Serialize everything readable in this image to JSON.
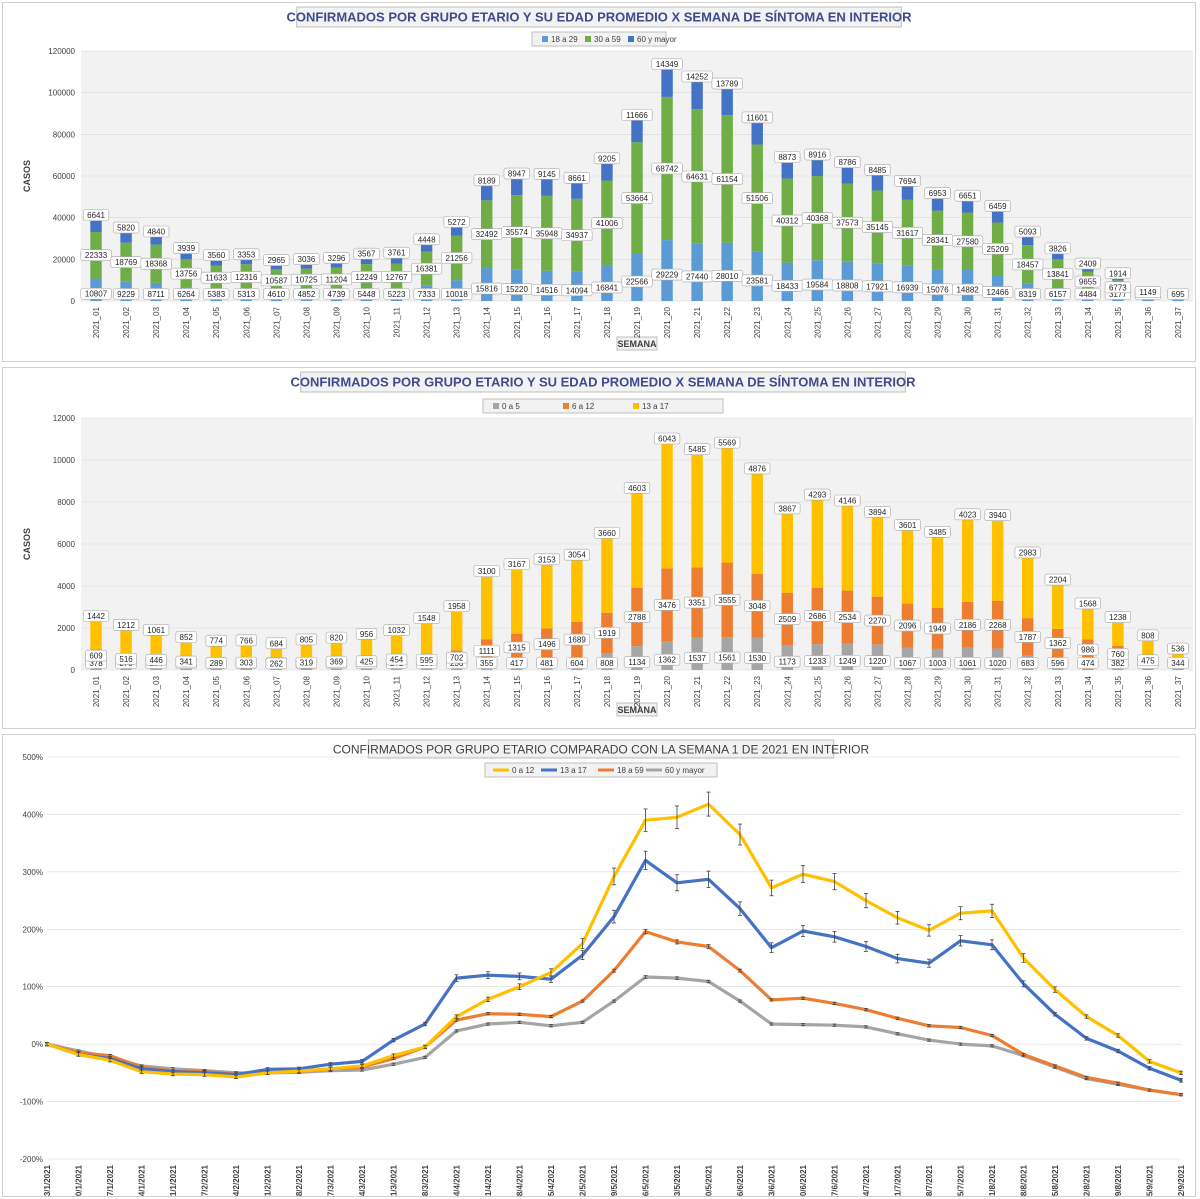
{
  "chart_data": [
    {
      "type": "bar",
      "stacked": true,
      "title": "CONFIRMADOS POR GRUPO ETARIO Y SU EDAD PROMEDIO X SEMANA DE SÍNTOMA EN INTERIOR",
      "xlabel": "SEMANA",
      "ylabel": "CASOS",
      "ylim": [
        0,
        120000
      ],
      "yticks": [
        0,
        20000,
        40000,
        60000,
        80000,
        100000,
        120000
      ],
      "legend_position": "top",
      "categories": [
        "2021_01",
        "2021_02",
        "2021_03",
        "2021_04",
        "2021_05",
        "2021_06",
        "2021_07",
        "2021_08",
        "2021_09",
        "2021_10",
        "2021_11",
        "2021_12",
        "2021_13",
        "2021_14",
        "2021_15",
        "2021_16",
        "2021_17",
        "2021_18",
        "2021_19",
        "2021_20",
        "2021_21",
        "2021_22",
        "2021_23",
        "2021_24",
        "2021_25",
        "2021_26",
        "2021_27",
        "2021_28",
        "2021_29",
        "2021_30",
        "2021_31",
        "2021_32",
        "2021_33",
        "2021_34",
        "2021_35",
        "2021_36",
        "2021_37"
      ],
      "series": [
        {
          "name": "18 a 29",
          "color": "#5b9bd5",
          "values": [
            10807,
            9229,
            8711,
            6264,
            5383,
            5313,
            4610,
            4852,
            4739,
            5448,
            5223,
            7333,
            10018,
            15816,
            15220,
            14516,
            14094,
            16841,
            22566,
            29229,
            27440,
            28010,
            23581,
            18433,
            19584,
            18808,
            17921,
            16939,
            15076,
            14882,
            12466,
            8319,
            6157,
            4484,
            3177,
            1627,
            695
          ]
        },
        {
          "name": "30 a 59",
          "color": "#70ad47",
          "values": [
            22333,
            18769,
            18368,
            13756,
            11633,
            12316,
            10587,
            10725,
            11204,
            12249,
            12767,
            16381,
            21256,
            32492,
            35574,
            35948,
            34937,
            41006,
            53664,
            68742,
            64631,
            61154,
            51506,
            40312,
            40368,
            37573,
            35145,
            31617,
            28341,
            27580,
            25209,
            18457,
            13841,
            9655,
            6773,
            null,
            null
          ]
        },
        {
          "name": "60 y mayor",
          "color": "#4472c4",
          "values": [
            6641,
            5820,
            4840,
            3939,
            3560,
            3353,
            2965,
            3036,
            3296,
            3567,
            3761,
            4448,
            5272,
            8189,
            8947,
            9145,
            8661,
            9205,
            11666,
            14349,
            14252,
            13789,
            11601,
            8873,
            8916,
            8786,
            8485,
            7694,
            6953,
            6651,
            6459,
            5093,
            3826,
            2409,
            1914,
            1149,
            null
          ]
        }
      ]
    },
    {
      "type": "bar",
      "stacked": true,
      "title": "CONFIRMADOS POR GRUPO ETARIO Y SU EDAD PROMEDIO X SEMANA DE SÍNTOMA EN INTERIOR",
      "xlabel": "SEMANA",
      "ylabel": "CASOS",
      "ylim": [
        0,
        12000
      ],
      "yticks": [
        0,
        2000,
        4000,
        6000,
        8000,
        10000,
        12000
      ],
      "legend_position": "top",
      "categories": [
        "2021_01",
        "2021_02",
        "2021_03",
        "2021_04",
        "2021_05",
        "2021_06",
        "2021_07",
        "2021_08",
        "2021_09",
        "2021_10",
        "2021_11",
        "2021_12",
        "2021_13",
        "2021_14",
        "2021_15",
        "2021_16",
        "2021_17",
        "2021_18",
        "2021_19",
        "2021_20",
        "2021_21",
        "2021_22",
        "2021_23",
        "2021_24",
        "2021_25",
        "2021_26",
        "2021_27",
        "2021_28",
        "2021_29",
        "2021_30",
        "2021_31",
        "2021_32",
        "2021_33",
        "2021_34",
        "2021_35",
        "2021_36",
        "2021_37"
      ],
      "series": [
        {
          "name": "0 a 5",
          "color": "#a5a5a5",
          "values": [
            378,
            275,
            264,
            230,
            190,
            200,
            180,
            190,
            210,
            200,
            271,
            185,
            236,
            355,
            417,
            481,
            604,
            808,
            1134,
            1362,
            1537,
            1561,
            1530,
            1173,
            1233,
            1249,
            1220,
            1067,
            1003,
            1061,
            1020,
            683,
            596,
            474,
            382,
            226,
            344
          ]
        },
        {
          "name": "6 a 12",
          "color": "#ed7d31",
          "values": [
            609,
            516,
            446,
            341,
            289,
            303,
            262,
            319,
            369,
            425,
            454,
            595,
            702,
            1111,
            1315,
            1496,
            1689,
            1919,
            2788,
            3476,
            3351,
            3555,
            3048,
            2509,
            2686,
            2534,
            2270,
            2096,
            1949,
            2186,
            2268,
            1787,
            1362,
            986,
            760,
            475,
            null
          ]
        },
        {
          "name": "13 a 17",
          "color": "#ffc000",
          "values": [
            1442,
            1212,
            1061,
            852,
            774,
            766,
            684,
            805,
            820,
            956,
            1032,
            1548,
            1958,
            3100,
            3167,
            3153,
            3054,
            3660,
            4603,
            6043,
            5485,
            5569,
            4876,
            3867,
            4293,
            4146,
            3894,
            3601,
            3485,
            4023,
            3940,
            2983,
            2204,
            1568,
            1238,
            808,
            536
          ]
        }
      ]
    },
    {
      "type": "line",
      "title": "CONFIRMADOS POR GRUPO ETARIO COMPARADO CON LA SEMANA 1 DE 2021 EN INTERIOR",
      "ylim": [
        -200,
        500
      ],
      "yticks": [
        "-200%",
        "-100%",
        "0%",
        "100%",
        "200%",
        "300%",
        "400%",
        "500%"
      ],
      "legend_position": "top",
      "categories": [
        "3/1/2021",
        "10/1/2021",
        "17/1/2021",
        "24/1/2021",
        "31/1/2021",
        "7/2/2021",
        "14/2/2021",
        "21/2/2021",
        "28/2/2021",
        "7/3/2021",
        "14/3/2021",
        "21/3/2021",
        "28/3/2021",
        "4/4/2021",
        "11/4/2021",
        "18/4/2021",
        "25/4/2021",
        "2/5/2021",
        "9/5/2021",
        "16/5/2021",
        "23/5/2021",
        "30/5/2021",
        "6/6/2021",
        "13/6/2021",
        "20/6/2021",
        "27/6/2021",
        "4/7/2021",
        "11/7/2021",
        "18/7/2021",
        "25/7/2021",
        "1/8/2021",
        "8/8/2021",
        "15/8/2021",
        "22/8/2021",
        "29/8/2021",
        "5/9/2021",
        "12/9/2021"
      ],
      "series": [
        {
          "name": "0 a 12",
          "color": "#ffc000",
          "values": [
            0,
            -18,
            -28,
            -48,
            -52,
            -53,
            -57,
            -50,
            -47,
            -43,
            -38,
            -20,
            -5,
            48,
            78,
            100,
            125,
            175,
            292,
            390,
            395,
            418,
            365,
            272,
            296,
            283,
            250,
            220,
            198,
            228,
            232,
            150,
            95,
            48,
            15,
            -30,
            -50
          ]
        },
        {
          "name": "13 a 17",
          "color": "#4472c4",
          "values": [
            0,
            -18,
            -25,
            -43,
            -48,
            -50,
            -53,
            -44,
            -43,
            -35,
            -30,
            7,
            35,
            115,
            120,
            118,
            113,
            155,
            222,
            320,
            281,
            287,
            236,
            168,
            197,
            187,
            170,
            149,
            141,
            180,
            173,
            105,
            52,
            10,
            -12,
            -42,
            -63
          ]
        },
        {
          "name": "18 a 59",
          "color": "#ed7d31",
          "values": [
            0,
            -15,
            -20,
            -40,
            -47,
            -48,
            -52,
            -50,
            -48,
            -43,
            -40,
            -25,
            -5,
            42,
            53,
            52,
            48,
            75,
            128,
            196,
            178,
            170,
            128,
            77,
            80,
            71,
            60,
            45,
            32,
            29,
            15,
            -18,
            -38,
            -58,
            -68,
            -80,
            -88
          ]
        },
        {
          "name": "60 y mayor",
          "color": "#a5a5a5",
          "values": [
            0,
            -12,
            -23,
            -38,
            -43,
            -46,
            -50,
            -50,
            -49,
            -46,
            -45,
            -35,
            -23,
            23,
            35,
            38,
            32,
            38,
            75,
            117,
            115,
            109,
            75,
            35,
            34,
            33,
            30,
            18,
            7,
            0,
            -3,
            -20,
            -40,
            -60,
            -70,
            -80,
            -88
          ]
        }
      ]
    }
  ]
}
